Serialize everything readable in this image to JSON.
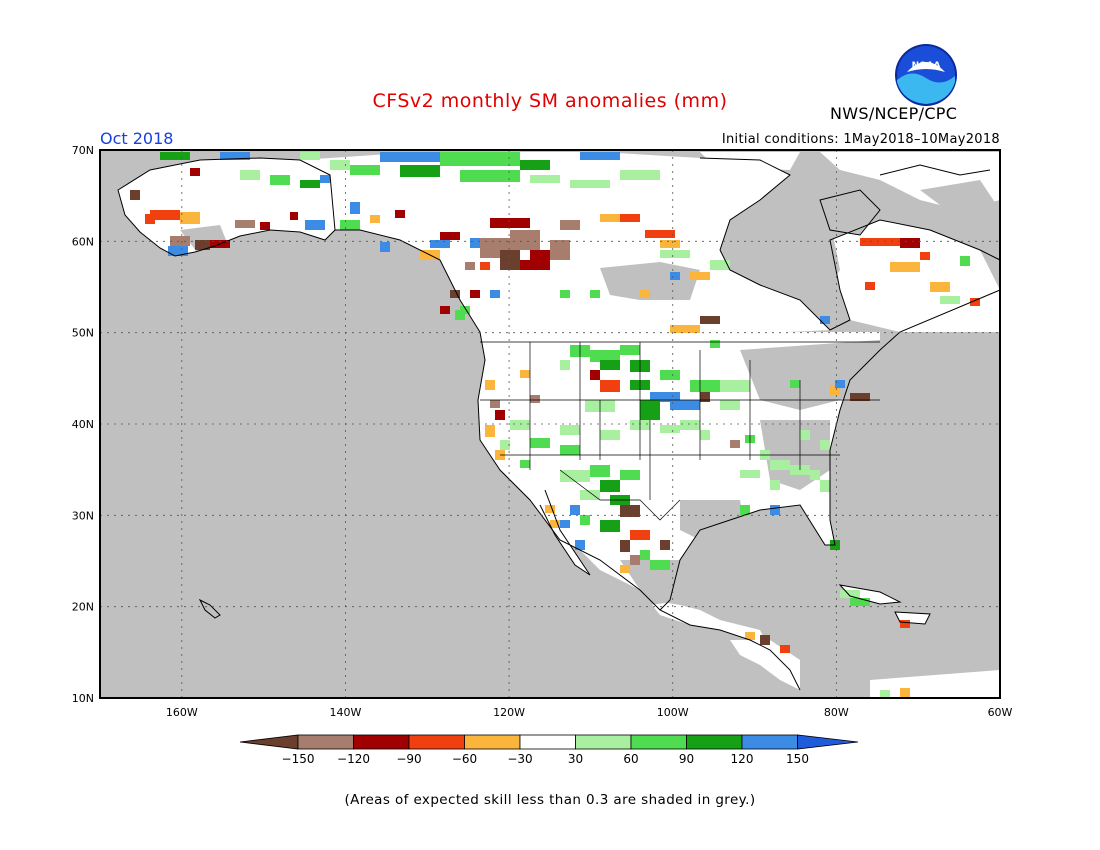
{
  "title": "CFSv2 monthly SM anomalies (mm)",
  "org": "NWS/NCEP/CPC",
  "logo_text": "NOAA",
  "month": "Oct 2018",
  "initial_conditions": "Initial conditions: 1May2018–10May2018",
  "footnote": "(Areas of expected skill less than 0.3 are shaded in grey.)",
  "lat_labels": [
    "70N",
    "60N",
    "50N",
    "40N",
    "30N",
    "20N",
    "10N"
  ],
  "lon_labels": [
    "160W",
    "140W",
    "120W",
    "100W",
    "80W",
    "60W"
  ],
  "legend": {
    "ticks": [
      "−150",
      "−120",
      "−90",
      "−60",
      "−30",
      "30",
      "60",
      "90",
      "120",
      "150"
    ],
    "colors": [
      "#6b3f2e",
      "#a77d6e",
      "#a00000",
      "#f04010",
      "#fbb43c",
      "#ffffff",
      "#a8f0a0",
      "#50dc50",
      "#16a016",
      "#3c8ce6",
      "#1e5cdc"
    ]
  },
  "colors": {
    "grey": "#c0c0c0",
    "title": "#e00000",
    "month": "#1840e0"
  }
}
